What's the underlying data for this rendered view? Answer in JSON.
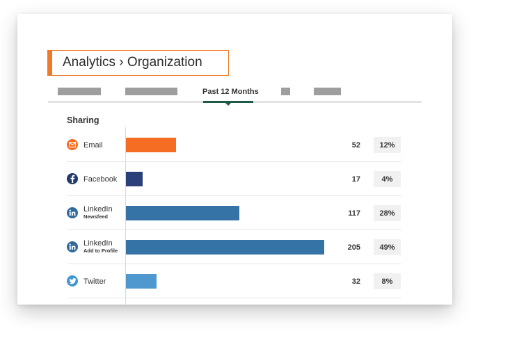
{
  "header": {
    "title": "Analytics › Organization"
  },
  "tabs": {
    "active_label": "Past 12 Months",
    "placeholders": [
      {
        "name": "tab-placeholder-1",
        "hidden_label": ""
      },
      {
        "name": "tab-placeholder-2",
        "hidden_label": ""
      },
      {
        "name": "tab-placeholder-3",
        "hidden_label": ""
      },
      {
        "name": "tab-placeholder-4",
        "hidden_label": ""
      }
    ]
  },
  "section": {
    "heading": "Sharing"
  },
  "chart_data": {
    "type": "bar",
    "orientation": "horizontal",
    "categories": [
      "Email",
      "Facebook",
      "LinkedIn Newsfeed",
      "LinkedIn Add to Profile",
      "Twitter"
    ],
    "values": [
      52,
      17,
      117,
      205,
      32
    ],
    "percent_labels": [
      "12%",
      "4%",
      "28%",
      "49%",
      "8%"
    ],
    "bar_colors": [
      "#f46d22",
      "#2b3f7a",
      "#3572a6",
      "#3572a6",
      "#4e98cf"
    ],
    "xlim": [
      0,
      205
    ],
    "grid": false
  },
  "rows": [
    {
      "label": "Email",
      "sublabel": "",
      "icon": "email-icon",
      "icon_color": "#f46d22",
      "count": "52",
      "pct": "12%"
    },
    {
      "label": "Facebook",
      "sublabel": "",
      "icon": "facebook-icon",
      "icon_color": "#233a6e",
      "count": "17",
      "pct": "4%"
    },
    {
      "label": "LinkedIn",
      "sublabel": "Newsfeed",
      "icon": "linkedin-icon",
      "icon_color": "#2f6b9a",
      "count": "117",
      "pct": "28%"
    },
    {
      "label": "LinkedIn",
      "sublabel": "Add to Profile",
      "icon": "linkedin-icon",
      "icon_color": "#2f6b9a",
      "count": "205",
      "pct": "49%"
    },
    {
      "label": "Twitter",
      "sublabel": "",
      "icon": "twitter-icon",
      "icon_color": "#3f97d2",
      "count": "32",
      "pct": "8%"
    }
  ]
}
